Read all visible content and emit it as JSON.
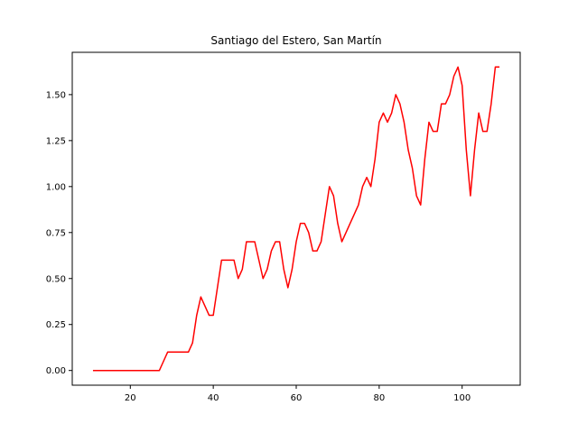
{
  "chart_data": {
    "type": "line",
    "title": "Santiago del Estero, San Martín",
    "xlabel": "",
    "ylabel": "",
    "xlim": [
      6,
      114
    ],
    "ylim": [
      -0.08,
      1.73
    ],
    "xticks": [
      20,
      40,
      60,
      80,
      100
    ],
    "yticks": [
      0.0,
      0.25,
      0.5,
      0.75,
      1.0,
      1.25,
      1.5
    ],
    "ytick_labels": [
      "0.00",
      "0.25",
      "0.50",
      "0.75",
      "1.00",
      "1.25",
      "1.50"
    ],
    "grid": false,
    "series": [
      {
        "color": "#ff0000",
        "x": [
          11,
          12,
          13,
          14,
          15,
          16,
          17,
          18,
          19,
          20,
          21,
          22,
          23,
          24,
          25,
          26,
          27,
          28,
          29,
          30,
          31,
          32,
          33,
          34,
          35,
          36,
          37,
          38,
          39,
          40,
          41,
          42,
          43,
          44,
          45,
          46,
          47,
          48,
          49,
          50,
          51,
          52,
          53,
          54,
          55,
          56,
          57,
          58,
          59,
          60,
          61,
          62,
          63,
          64,
          65,
          66,
          67,
          68,
          69,
          70,
          71,
          72,
          73,
          74,
          75,
          76,
          77,
          78,
          79,
          80,
          81,
          82,
          83,
          84,
          85,
          86,
          87,
          88,
          89,
          90,
          91,
          92,
          93,
          94,
          95,
          96,
          97,
          98,
          99,
          100,
          101,
          102,
          103,
          104,
          105,
          106,
          107,
          108,
          109
        ],
        "y": [
          0,
          0,
          0,
          0,
          0,
          0,
          0,
          0,
          0,
          0,
          0,
          0,
          0,
          0,
          0,
          0,
          0,
          0.05,
          0.1,
          0.1,
          0.1,
          0.1,
          0.1,
          0.1,
          0.15,
          0.3,
          0.4,
          0.35,
          0.3,
          0.3,
          0.45,
          0.6,
          0.6,
          0.6,
          0.6,
          0.5,
          0.55,
          0.7,
          0.7,
          0.7,
          0.6,
          0.5,
          0.55,
          0.65,
          0.7,
          0.7,
          0.55,
          0.45,
          0.55,
          0.7,
          0.8,
          0.8,
          0.75,
          0.65,
          0.65,
          0.7,
          0.85,
          1.0,
          0.95,
          0.8,
          0.7,
          0.75,
          0.8,
          0.85,
          0.9,
          1.0,
          1.05,
          1.0,
          1.15,
          1.35,
          1.4,
          1.35,
          1.4,
          1.5,
          1.45,
          1.35,
          1.2,
          1.1,
          0.95,
          0.9,
          1.15,
          1.35,
          1.3,
          1.3,
          1.45,
          1.45,
          1.5,
          1.6,
          1.65,
          1.55,
          1.2,
          0.95,
          1.2,
          1.4,
          1.3,
          1.3,
          1.45,
          1.65,
          1.65
        ]
      }
    ]
  }
}
